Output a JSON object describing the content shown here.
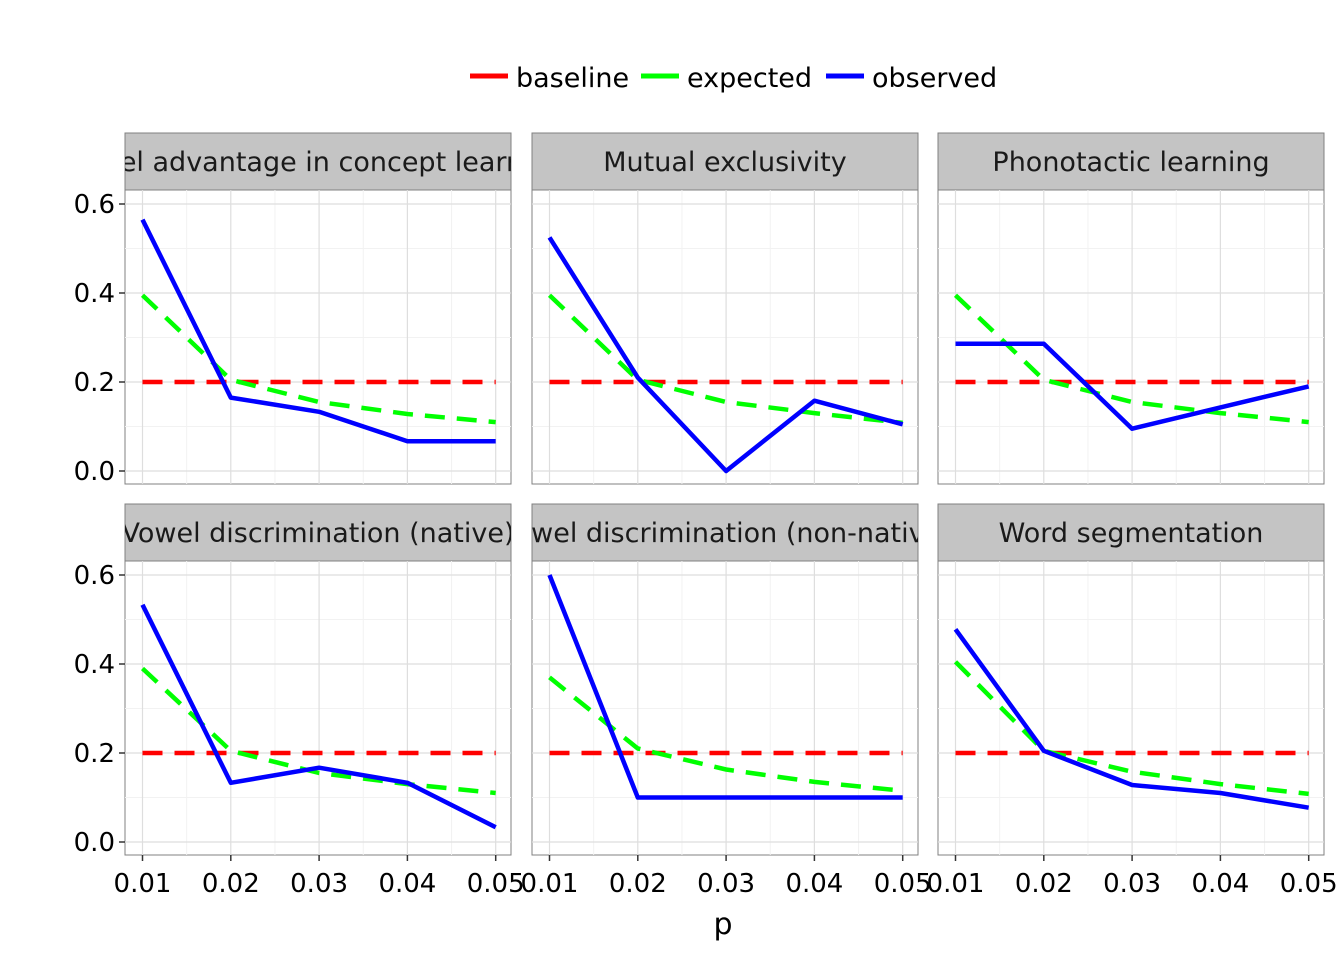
{
  "chart_data": {
    "type": "line",
    "layout": "facet grid, 2 rows x 3 columns, shared axes",
    "x": [
      0.01,
      0.02,
      0.03,
      0.04,
      0.05
    ],
    "x_tick_labels": [
      "0.01",
      "0.02",
      "0.03",
      "0.04",
      "0.05"
    ],
    "xlabel": "p",
    "ylabel": "",
    "ylim": [
      0,
      0.6
    ],
    "y_tick_labels": [
      "0.0",
      "0.2",
      "0.4",
      "0.6"
    ],
    "y_ticks": [
      0,
      0.2,
      0.4,
      0.6
    ],
    "grid": true,
    "legend": {
      "placement": "top",
      "items": [
        {
          "name": "baseline",
          "color": "#ff0000",
          "dash": true
        },
        {
          "name": "expected",
          "color": "#00ff00",
          "dash": true
        },
        {
          "name": "observed",
          "color": "#0000ff",
          "dash": false
        }
      ]
    },
    "facets": [
      {
        "title": "Label advantage in concept learning",
        "series": {
          "baseline": [
            0.2,
            0.2,
            0.2,
            0.2,
            0.2
          ],
          "expected": [
            0.395,
            0.205,
            0.155,
            0.128,
            0.11
          ],
          "observed": [
            0.565,
            0.165,
            0.133,
            0.067,
            0.067
          ]
        }
      },
      {
        "title": "Mutual exclusivity",
        "series": {
          "baseline": [
            0.2,
            0.2,
            0.2,
            0.2,
            0.2
          ],
          "expected": [
            0.395,
            0.205,
            0.155,
            0.13,
            0.108
          ],
          "observed": [
            0.525,
            0.21,
            0.0,
            0.158,
            0.105
          ]
        }
      },
      {
        "title": "Phonotactic learning",
        "series": {
          "baseline": [
            0.2,
            0.2,
            0.2,
            0.2,
            0.2
          ],
          "expected": [
            0.395,
            0.205,
            0.155,
            0.13,
            0.11
          ],
          "observed": [
            0.286,
            0.286,
            0.095,
            0.143,
            0.19
          ]
        }
      },
      {
        "title": "Vowel discrimination (native)",
        "series": {
          "baseline": [
            0.2,
            0.2,
            0.2,
            0.2,
            0.2
          ],
          "expected": [
            0.39,
            0.205,
            0.155,
            0.13,
            0.11
          ],
          "observed": [
            0.533,
            0.133,
            0.167,
            0.133,
            0.033
          ]
        }
      },
      {
        "title": "Vowel discrimination (non-native)",
        "series": {
          "baseline": [
            0.2,
            0.2,
            0.2,
            0.2,
            0.2
          ],
          "expected": [
            0.37,
            0.21,
            0.163,
            0.135,
            0.115
          ],
          "observed": [
            0.6,
            0.1,
            0.1,
            0.1,
            0.1
          ]
        }
      },
      {
        "title": "Word segmentation",
        "series": {
          "baseline": [
            0.2,
            0.2,
            0.2,
            0.2,
            0.2
          ],
          "expected": [
            0.405,
            0.205,
            0.158,
            0.13,
            0.108
          ],
          "observed": [
            0.478,
            0.205,
            0.128,
            0.11,
            0.077
          ]
        }
      }
    ]
  }
}
